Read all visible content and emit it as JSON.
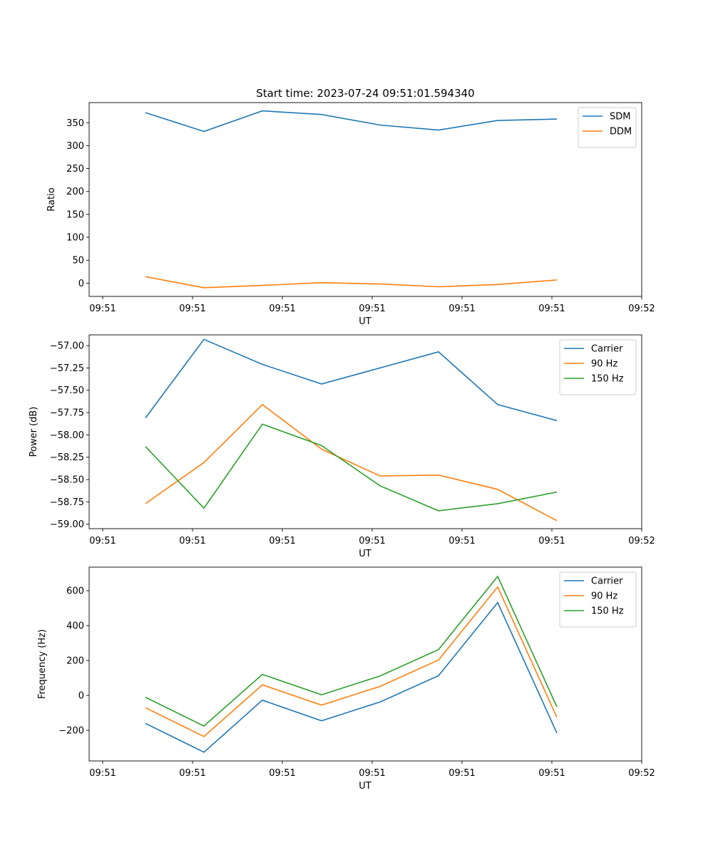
{
  "figure": {
    "title": "Start time: 2023-07-24 09:51:01.594340",
    "colors": {
      "blue": "#1f77b4",
      "orange": "#ff7f0e",
      "green": "#2ca02c"
    }
  },
  "chart_data": [
    {
      "type": "line",
      "title": "Start time: 2023-07-24 09:51:01.594340",
      "xlabel": "UT",
      "ylabel": "Ratio",
      "x_tick_labels": [
        "09:51",
        "09:51",
        "09:51",
        "09:51",
        "09:51",
        "09:51",
        "09:52"
      ],
      "y_ticks": [
        0,
        50,
        100,
        150,
        200,
        250,
        300,
        350
      ],
      "y_tick_labels": [
        "0",
        "50",
        "100",
        "150",
        "200",
        "250",
        "300",
        "350"
      ],
      "ylim": [
        -29,
        394
      ],
      "legend_position": "top-right",
      "grid": false,
      "series": [
        {
          "name": "SDM",
          "color": "#1f77b4",
          "values": [
            372,
            331,
            376,
            368,
            345,
            334,
            355,
            358
          ]
        },
        {
          "name": "DDM",
          "color": "#ff7f0e",
          "values": [
            14,
            -10,
            -5,
            1,
            -2,
            -8,
            -3,
            7
          ]
        }
      ]
    },
    {
      "type": "line",
      "title": "",
      "xlabel": "UT",
      "ylabel": "Power (dB)",
      "x_tick_labels": [
        "09:51",
        "09:51",
        "09:51",
        "09:51",
        "09:51",
        "09:51",
        "09:52"
      ],
      "y_ticks": [
        -59.0,
        -58.75,
        -58.5,
        -58.25,
        -58.0,
        -57.75,
        -57.5,
        -57.25,
        -57.0
      ],
      "y_tick_labels": [
        "−59.00",
        "−58.75",
        "−58.50",
        "−58.25",
        "−58.00",
        "−57.75",
        "−57.50",
        "−57.25",
        "−57.00"
      ],
      "ylim": [
        -59.05,
        -56.88
      ],
      "legend_position": "top-right",
      "grid": false,
      "series": [
        {
          "name": "Carrier",
          "color": "#1f77b4",
          "values": [
            -57.81,
            -56.93,
            -57.21,
            -57.43,
            -57.25,
            -57.07,
            -57.66,
            -57.84
          ]
        },
        {
          "name": "90 Hz",
          "color": "#ff7f0e",
          "values": [
            -58.77,
            -58.31,
            -57.66,
            -58.16,
            -58.46,
            -58.45,
            -58.61,
            -58.96
          ]
        },
        {
          "name": "150 Hz",
          "color": "#2ca02c",
          "values": [
            -58.13,
            -58.82,
            -57.88,
            -58.12,
            -58.57,
            -58.85,
            -58.77,
            -58.64
          ]
        }
      ]
    },
    {
      "type": "line",
      "title": "",
      "xlabel": "UT",
      "ylabel": "Frequency (Hz)",
      "x_tick_labels": [
        "09:51",
        "09:51",
        "09:51",
        "09:51",
        "09:51",
        "09:51",
        "09:52"
      ],
      "y_ticks": [
        -200,
        0,
        200,
        400,
        600
      ],
      "y_tick_labels": [
        "−200",
        "0",
        "200",
        "400",
        "600"
      ],
      "ylim": [
        -375,
        735
      ],
      "legend_position": "top-right",
      "grid": false,
      "series": [
        {
          "name": "Carrier",
          "color": "#1f77b4",
          "values": [
            -160,
            -325,
            -27,
            -145,
            -37,
            113,
            532,
            -215
          ]
        },
        {
          "name": "90 Hz",
          "color": "#ff7f0e",
          "values": [
            -70,
            -235,
            61,
            -55,
            52,
            203,
            622,
            -125
          ]
        },
        {
          "name": "150 Hz",
          "color": "#2ca02c",
          "values": [
            -10,
            -175,
            121,
            4,
            112,
            263,
            682,
            -65
          ]
        }
      ]
    }
  ]
}
